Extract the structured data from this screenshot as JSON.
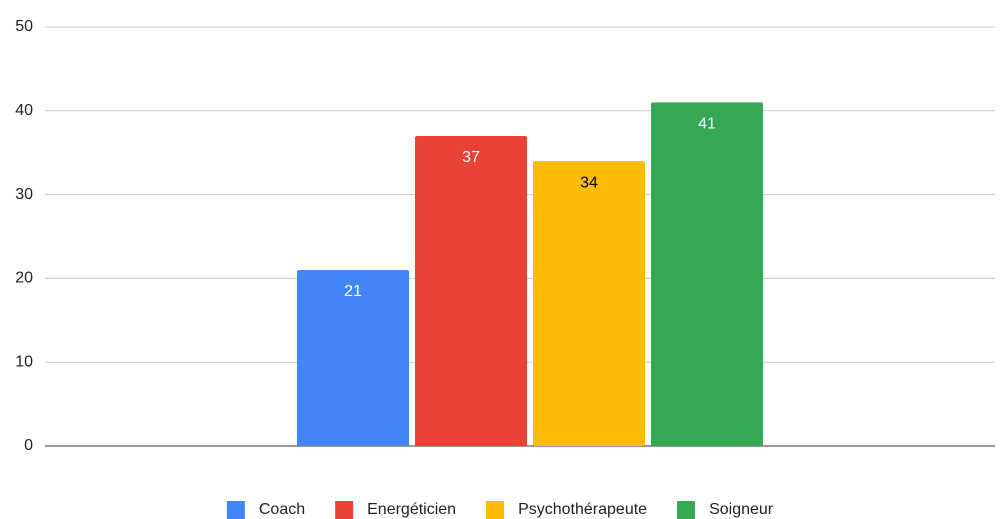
{
  "chart_data": {
    "type": "bar",
    "categories": [
      null
    ],
    "series": [
      {
        "name": "Coach",
        "color": "#4285f4",
        "values": [
          21
        ]
      },
      {
        "name": "Energéticien",
        "color": "#ea4335",
        "values": [
          37
        ]
      },
      {
        "name": "Psychothérapeute",
        "color": "#fbbc04",
        "values": [
          34
        ]
      },
      {
        "name": "Soigneur",
        "color": "#34a853",
        "values": [
          41
        ]
      }
    ],
    "ylim": [
      0,
      50
    ],
    "yticks": [
      0,
      10,
      20,
      30,
      40,
      50
    ],
    "grid": true,
    "legend": "bottom"
  }
}
